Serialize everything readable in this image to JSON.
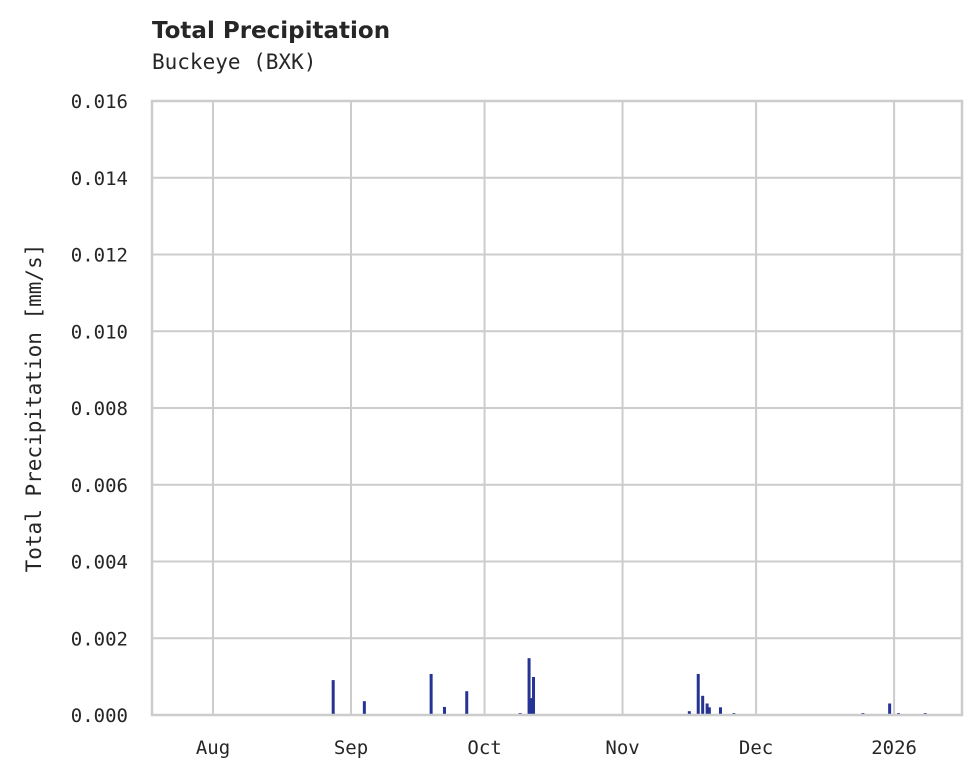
{
  "chart_data": {
    "type": "bar",
    "title": "Total Precipitation",
    "subtitle": "Buckeye (BXK)",
    "xlabel": "",
    "ylabel": "Total Precipitation [mm/s]",
    "ylim": [
      0,
      0.016
    ],
    "yticks": [
      "0.000",
      "0.002",
      "0.004",
      "0.006",
      "0.008",
      "0.010",
      "0.012",
      "0.014",
      "0.016"
    ],
    "xticks": [
      "Aug",
      "Sep",
      "Oct",
      "Nov",
      "Dec",
      "2026"
    ],
    "grid": true,
    "legend": null,
    "bar_color": "#253494",
    "grid_color": "#cccccc",
    "points": [
      {
        "date": "2025-08-28",
        "value": 0.00091
      },
      {
        "date": "2025-09-04",
        "value": 0.00036
      },
      {
        "date": "2025-09-19",
        "value": 0.00107
      },
      {
        "date": "2025-09-22",
        "value": 0.00021
      },
      {
        "date": "2025-09-27",
        "value": 0.00062
      },
      {
        "date": "2025-10-09",
        "value": 5e-05
      },
      {
        "date": "2025-10-11",
        "value": 0.00148
      },
      {
        "date": "2025-10-11T12",
        "value": 0.00044
      },
      {
        "date": "2025-10-12",
        "value": 0.00099
      },
      {
        "date": "2025-11-16",
        "value": 0.0001
      },
      {
        "date": "2025-11-18",
        "value": 0.00107
      },
      {
        "date": "2025-11-19",
        "value": 0.0005
      },
      {
        "date": "2025-11-20",
        "value": 0.0003
      },
      {
        "date": "2025-11-20T12",
        "value": 0.0002
      },
      {
        "date": "2025-11-23",
        "value": 0.0002
      },
      {
        "date": "2025-11-26",
        "value": 5e-05
      },
      {
        "date": "2025-12-25",
        "value": 5e-05
      },
      {
        "date": "2025-12-31",
        "value": 0.0003
      },
      {
        "date": "2026-01-02",
        "value": 5e-05
      },
      {
        "date": "2026-01-08",
        "value": 5e-05
      }
    ]
  }
}
